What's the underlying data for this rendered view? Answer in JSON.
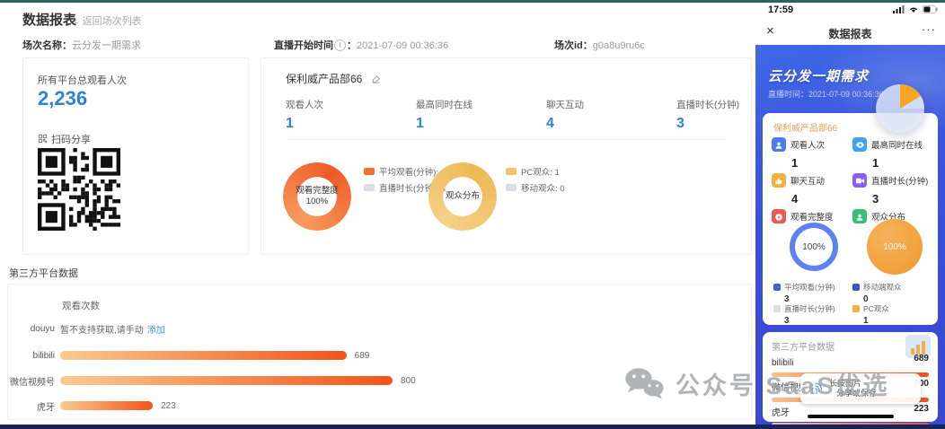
{
  "colors": {
    "accent_blue": "#2b84d8",
    "donut_orange": "#f4702e",
    "donut_yellow": "#f2c568",
    "legend_gray": "#d9dde6",
    "link_blue": "#4a90e2",
    "mobile_bg": "#3a4bd8"
  },
  "desktop": {
    "title": "数据报表",
    "back_icon": "‹",
    "back_label": "返回场次列表",
    "info": {
      "session_name_label": "场次名称：",
      "session_name": "云分发一期需求",
      "start_time_label": "直播开始时间",
      "info_icon": "i",
      "colon": "：",
      "start_time": "2021-07-09 00:36:36",
      "session_id_label": "场次id：",
      "session_id": "g0a8u9ru6c"
    },
    "total_card": {
      "label": "所有平台总观看人次",
      "value": "2,236",
      "qr_label": "扫码分享"
    },
    "channel_card": {
      "title": "保利威产品部66",
      "stats": [
        {
          "label": "观看人次",
          "value": "1"
        },
        {
          "label": "最高同时在线",
          "value": "1"
        },
        {
          "label": "聊天互动",
          "value": "4"
        },
        {
          "label": "直播时长(分钟)",
          "value": "3"
        }
      ],
      "donut1": {
        "center_line1": "观看完整度",
        "center_line2": "100%",
        "legend1": "平均观看(分钟): 3",
        "legend2": "直播时长(分钟): 3"
      },
      "donut2": {
        "center": "观众分布",
        "legend1": "PC观众: 1",
        "legend2": "移动观众: 0"
      }
    },
    "third_party": {
      "title": "第三方平台数据",
      "col_label": "观看次数",
      "douyu": {
        "label": "douyu",
        "note": "暂不支持获取,请手动",
        "link": "添加"
      },
      "bars": [
        {
          "label": "bilibili",
          "value": 689
        },
        {
          "label": "微信视频号",
          "value": 800
        },
        {
          "label": "虎牙",
          "value": 223
        }
      ],
      "max": 800
    }
  },
  "mobile": {
    "status": {
      "time": "17:59"
    },
    "nav": {
      "close": "×",
      "title": "数据报表",
      "more": "···"
    },
    "header": {
      "title": "云分发一期需求",
      "time_label": "直播时间：",
      "time": "2021-07-09 00:36:36"
    },
    "card": {
      "title": "保利威产品部66",
      "stats": [
        {
          "label": "观看人次",
          "value": "1",
          "color": "#4a7bf0"
        },
        {
          "label": "最高同时在线",
          "value": "1",
          "color": "#38a4f2"
        },
        {
          "label": "聊天互动",
          "value": "4",
          "color": "#f2b23e"
        },
        {
          "label": "直播时长(分钟)",
          "value": "3",
          "color": "#8b5cf6"
        },
        {
          "label": "观看完整度",
          "color": "#f05a4e"
        },
        {
          "label": "观众分布",
          "color": "#35c077"
        }
      ],
      "ring_value": "100%",
      "circle_value": "100%",
      "legends": [
        {
          "label": "平均观看(分钟)",
          "value": "3",
          "color": "#4a5fd0"
        },
        {
          "label": "直播时长(分钟)",
          "value": "3",
          "color": "#d8dce5"
        },
        {
          "label": "移动端观众",
          "value": "0",
          "color": "#3d55c8"
        },
        {
          "label": "PC观众",
          "value": "1",
          "color": "#f0b14a"
        }
      ]
    },
    "card2": {
      "title": "第三方平台数据",
      "rows": [
        {
          "label": "bilibili",
          "value": "689"
        },
        {
          "label": "微信视频号",
          "value": "800"
        },
        {
          "label": "虎牙",
          "value": "223"
        }
      ]
    },
    "tooltip": {
      "line1": "长按图片",
      "line2": "分享或保存"
    }
  },
  "watermark": {
    "text": "公众号 SaaS优选"
  },
  "chart_data": [
    {
      "type": "pie",
      "title": "观看完整度",
      "labels": [
        "平均观看(分钟)",
        "直播时长(分钟)"
      ],
      "values": [
        3,
        3
      ],
      "center_text": "观看完整度 100%",
      "legend_position": "right"
    },
    {
      "type": "pie",
      "title": "观众分布",
      "labels": [
        "PC观众",
        "移动观众"
      ],
      "values": [
        1,
        0
      ],
      "center_text": "观众分布",
      "legend_position": "right"
    },
    {
      "type": "bar",
      "title": "第三方平台数据",
      "xlabel": "观看次数",
      "categories": [
        "douyu",
        "bilibili",
        "微信视频号",
        "虎牙"
      ],
      "values": [
        null,
        689,
        800,
        223
      ],
      "note": "douyu: 暂不支持获取,请手动添加",
      "xlim": [
        0,
        800
      ],
      "orientation": "horizontal"
    }
  ]
}
